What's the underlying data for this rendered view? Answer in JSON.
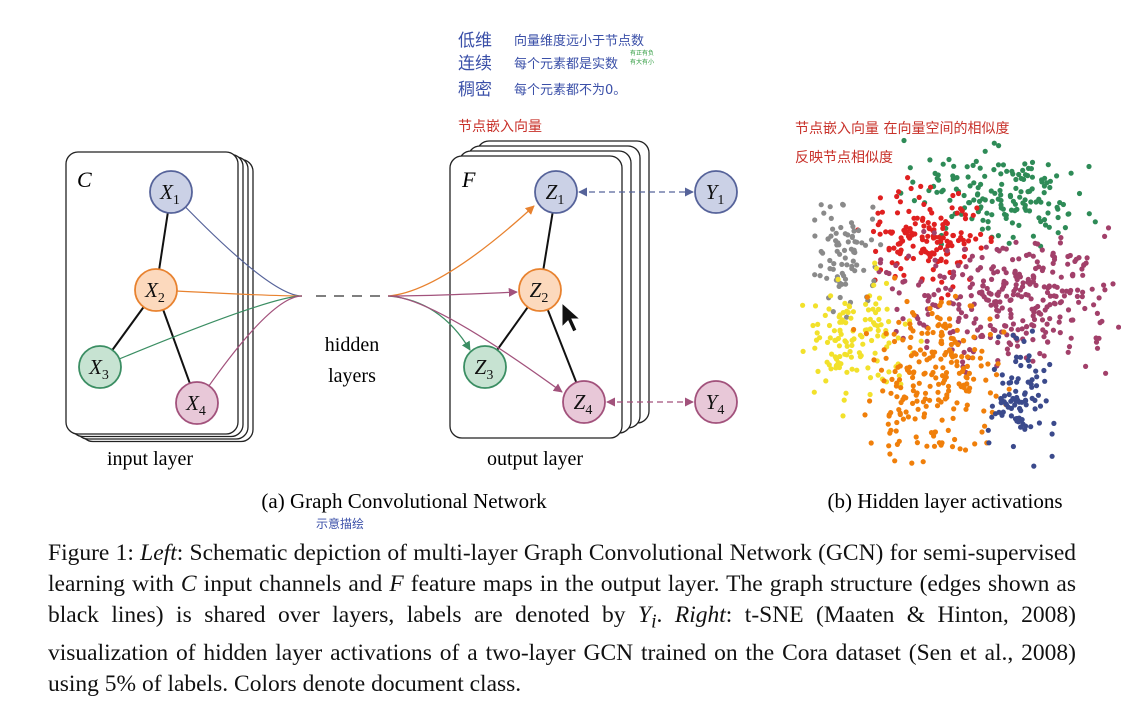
{
  "annotations": {
    "rows": [
      {
        "term": "低维",
        "note": "向量维度远小于节点数"
      },
      {
        "term": "连续",
        "note": "每个元素都是实数",
        "extra": [
          "有正有负",
          "有大有小"
        ]
      },
      {
        "term": "稠密",
        "note": "每个元素都不为0。"
      }
    ],
    "embedding": "节点嵌入向量",
    "similarity": [
      "节点嵌入向量 在向量空间的相似度",
      "反映节点相似度"
    ],
    "depiction": "示意描绘"
  },
  "input_layer": {
    "channel": "C",
    "nodes": [
      {
        "label": "X",
        "sub": "1"
      },
      {
        "label": "X",
        "sub": "2"
      },
      {
        "label": "X",
        "sub": "3"
      },
      {
        "label": "X",
        "sub": "4"
      }
    ],
    "label": "input layer"
  },
  "hidden": [
    "hidden",
    "layers"
  ],
  "output_layer": {
    "channel": "F",
    "nodes": [
      {
        "label": "Z",
        "sub": "1"
      },
      {
        "label": "Z",
        "sub": "2"
      },
      {
        "label": "Z",
        "sub": "3"
      },
      {
        "label": "Z",
        "sub": "4"
      }
    ],
    "targets": [
      {
        "label": "Y",
        "sub": "1"
      },
      {
        "label": "Y",
        "sub": "4"
      }
    ],
    "label": "output layer"
  },
  "subfigures": [
    "(a) Graph Convolutional Network",
    "(b) Hidden layer activations"
  ],
  "caption": [
    "Figure 1: ",
    "Left",
    ": Schematic depiction of multi-layer Graph Convolutional Network (GCN) for semi-supervised learning with ",
    "C",
    " input channels and ",
    "F",
    " feature maps in the output layer. The graph structure (edges shown as black lines) is shared over layers, labels are denoted by ",
    "Y",
    "i",
    ". ",
    "Right",
    ": t-SNE (Maaten & Hinton, 2008) visualization of hidden layer activations of a two-layer GCN trained on the Cora dataset (Sen et al., 2008) using 5% of labels. Colors denote document class."
  ]
}
